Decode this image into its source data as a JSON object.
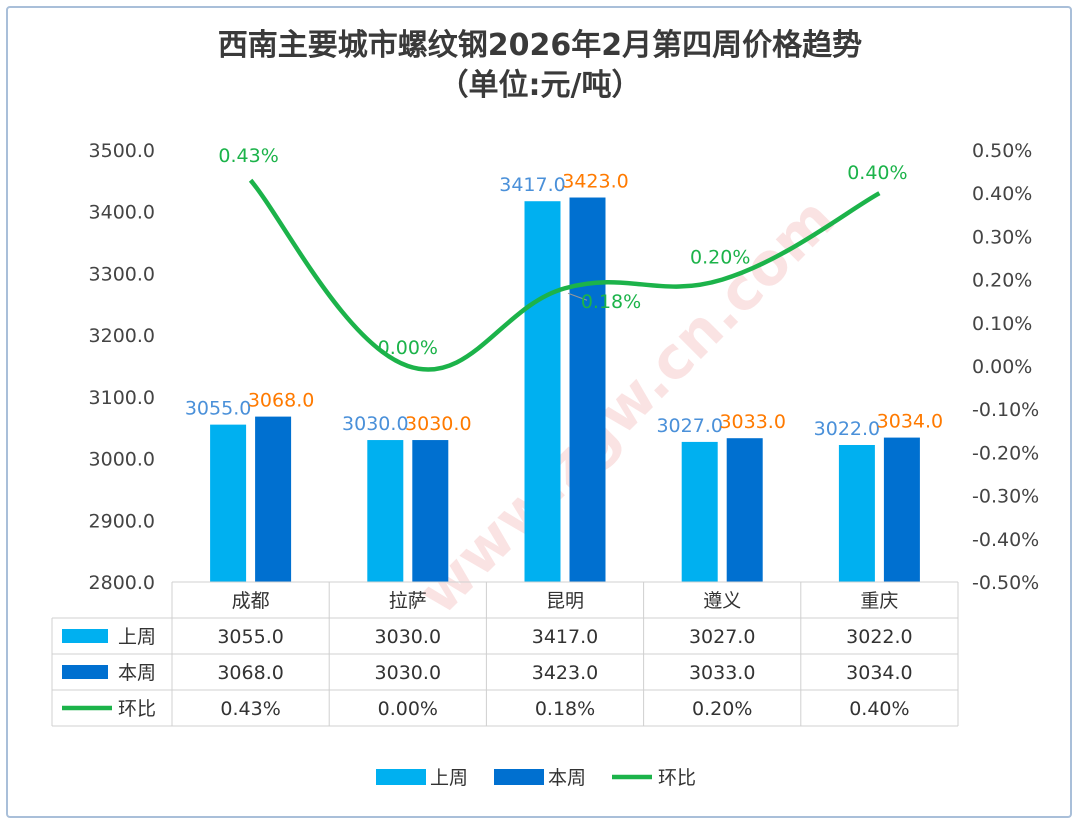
{
  "chart_data": {
    "type": "bar",
    "title": "西南主要城市螺纹钢2026年2月第四周价格趋势",
    "subtitle": "（单位:元/吨）",
    "categories": [
      "成都",
      "拉萨",
      "昆明",
      "遵义",
      "重庆"
    ],
    "series": [
      {
        "name": "上周",
        "type": "bar",
        "color": "#00b0f0",
        "values": [
          3055.0,
          3030.0,
          3417.0,
          3027.0,
          3022.0
        ],
        "labels": [
          "3055.0",
          "3030.0",
          "3417.0",
          "3027.0",
          "3022.0"
        ]
      },
      {
        "name": "本周",
        "type": "bar",
        "color": "#0070d0",
        "values": [
          3068.0,
          3030.0,
          3423.0,
          3033.0,
          3034.0
        ],
        "labels": [
          "3068.0",
          "3030.0",
          "3423.0",
          "3033.0",
          "3034.0"
        ]
      },
      {
        "name": "环比",
        "type": "line",
        "axis": "right",
        "color": "#1cb34a",
        "values": [
          0.43,
          0.0,
          0.18,
          0.2,
          0.4
        ],
        "labels": [
          "0.43%",
          "0.00%",
          "0.18%",
          "0.20%",
          "0.40%"
        ]
      }
    ],
    "y_left": {
      "min": 2800,
      "max": 3500,
      "step": 100,
      "ticks": [
        "2800.0",
        "2900.0",
        "3000.0",
        "3100.0",
        "3200.0",
        "3300.0",
        "3400.0",
        "3500.0"
      ]
    },
    "y_right": {
      "min": -0.5,
      "max": 0.5,
      "step": 0.1,
      "ticks": [
        "-0.50%",
        "-0.40%",
        "-0.30%",
        "-0.20%",
        "-0.10%",
        "0.00%",
        "0.10%",
        "0.20%",
        "0.30%",
        "0.40%",
        "0.50%"
      ]
    },
    "legend_position": "bottom",
    "data_table": true
  },
  "watermark": {
    "text": "www.zgw.cn.com"
  }
}
